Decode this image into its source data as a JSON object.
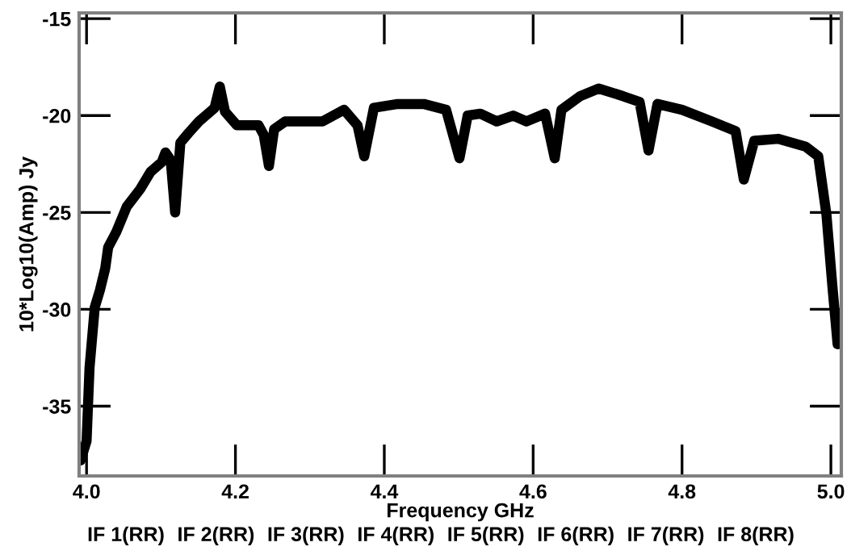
{
  "chart_data": {
    "type": "line",
    "xlabel": "Frequency GHz",
    "ylabel": "10*Log10(Amp) Jy",
    "xlim": [
      3.99,
      5.014
    ],
    "ylim": [
      -38.6,
      -14.7
    ],
    "xticks": [
      {
        "value": 4.0,
        "label": "4.0"
      },
      4.2,
      4.4,
      4.6,
      4.8,
      {
        "value": 5.0,
        "label": "5.0"
      }
    ],
    "yticks": [
      -35,
      -30,
      -25,
      -20,
      -15
    ],
    "grid": false,
    "legend": false,
    "marker": "none",
    "line_style": "solid",
    "annotations": [
      "IF 1(RR)",
      "IF 2(RR)",
      "IF 3(RR)",
      "IF 4(RR)",
      "IF 5(RR)",
      "IF 6(RR)",
      "IF 7(RR)",
      "IF 8(RR)"
    ],
    "series": [
      {
        "color": "#000000",
        "x": [
          3.992,
          4.0,
          4.004,
          4.011,
          4.018,
          4.025,
          4.029,
          4.04,
          4.054,
          4.072,
          4.086,
          4.101,
          4.106,
          4.113,
          4.119,
          4.126,
          4.137,
          4.151,
          4.172,
          4.179,
          4.186,
          4.202,
          4.231,
          4.238,
          4.245,
          4.252,
          4.267,
          4.317,
          4.346,
          4.364,
          4.373,
          4.386,
          4.418,
          4.453,
          4.483,
          4.501,
          4.512,
          4.529,
          4.551,
          4.573,
          4.591,
          4.616,
          4.629,
          4.638,
          4.663,
          4.688,
          4.721,
          4.743,
          4.755,
          4.767,
          4.8,
          4.84,
          4.872,
          4.883,
          4.897,
          4.929,
          4.966,
          4.983,
          4.994,
          5.002,
          5.009
        ],
        "values": [
          -37.8,
          -36.8,
          -33.0,
          -29.9,
          -29.0,
          -27.9,
          -26.8,
          -26.0,
          -24.7,
          -23.8,
          -22.9,
          -22.4,
          -21.9,
          -22.3,
          -25.0,
          -21.4,
          -20.9,
          -20.3,
          -19.6,
          -18.5,
          -19.8,
          -20.5,
          -20.5,
          -21.0,
          -22.6,
          -20.7,
          -20.3,
          -20.3,
          -19.7,
          -20.5,
          -22.1,
          -19.6,
          -19.4,
          -19.4,
          -19.7,
          -22.2,
          -20.0,
          -19.9,
          -20.3,
          -20.0,
          -20.3,
          -19.9,
          -22.2,
          -19.7,
          -19.0,
          -18.6,
          -19.0,
          -19.3,
          -21.8,
          -19.4,
          -19.7,
          -20.3,
          -20.8,
          -23.3,
          -21.3,
          -21.2,
          -21.6,
          -22.1,
          -25.1,
          -28.8,
          -31.8
        ]
      }
    ]
  }
}
